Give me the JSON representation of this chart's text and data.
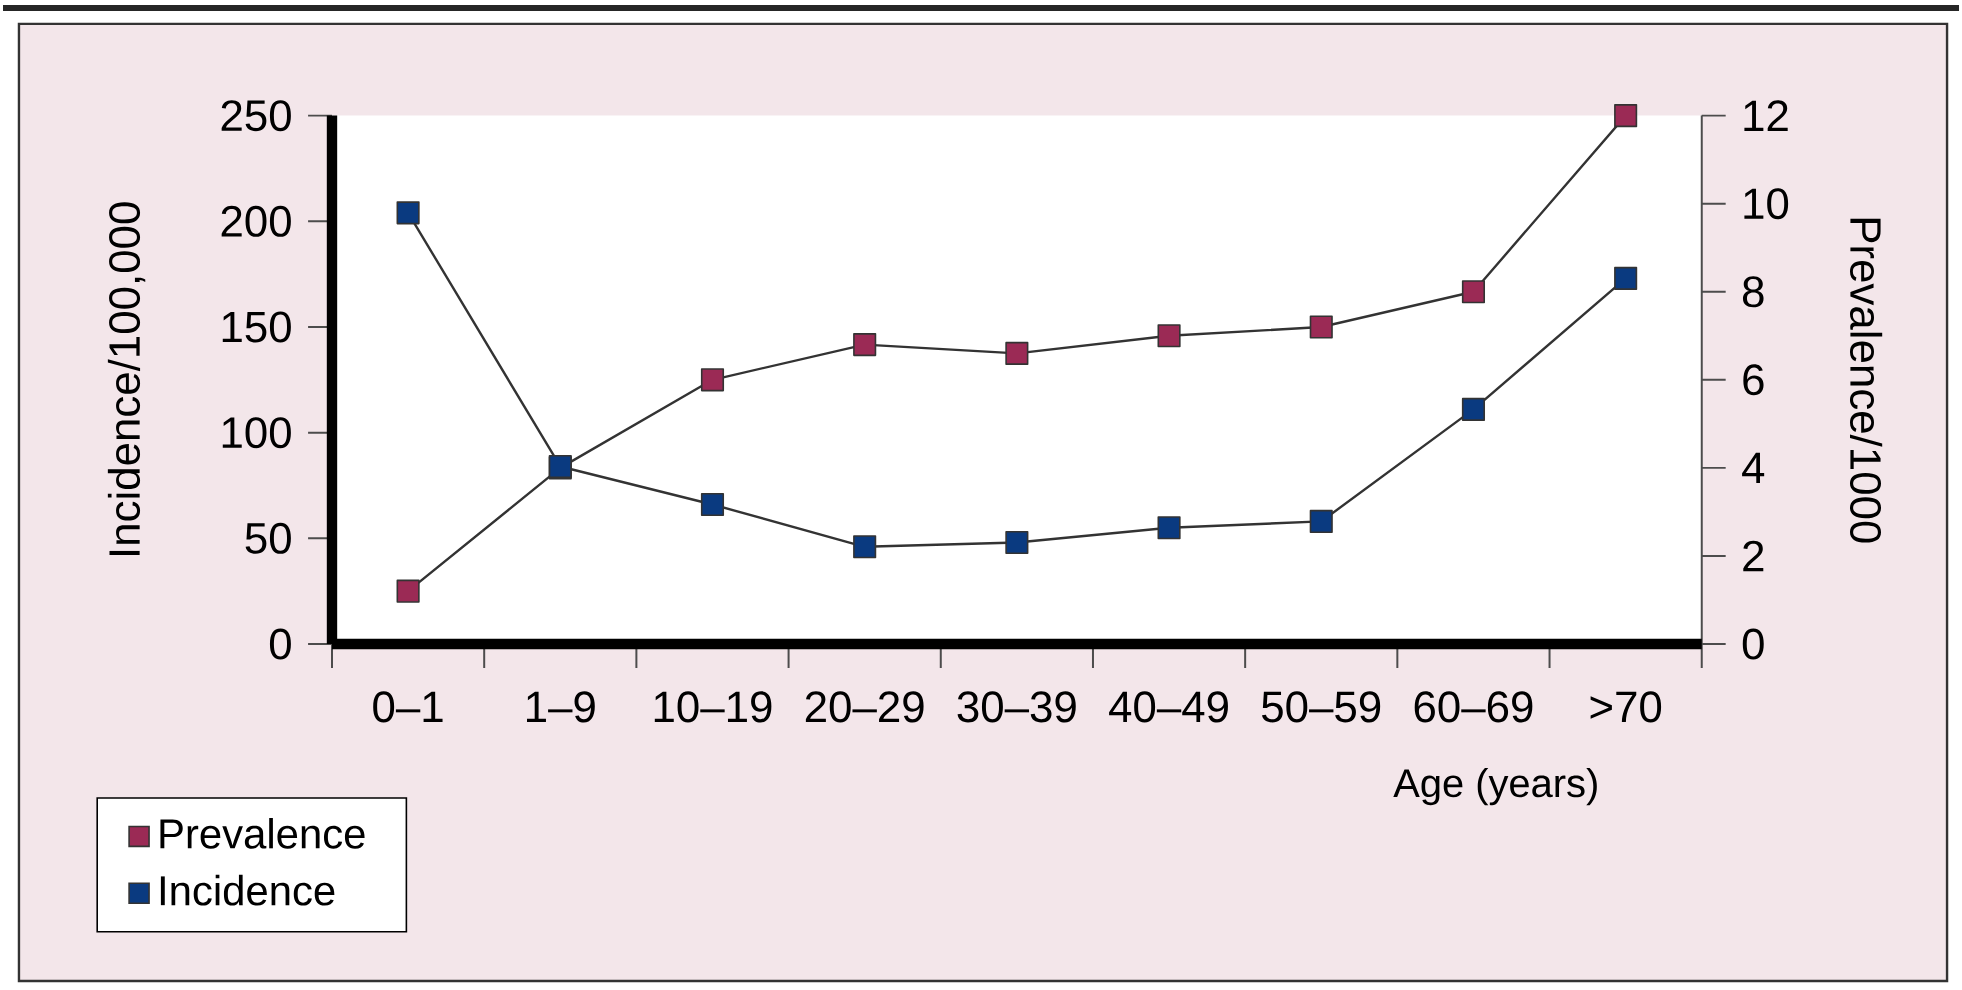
{
  "chart_data": {
    "type": "line",
    "xlabel": "Age (years)",
    "ylabel": "Incidence/100,000",
    "y2label": "Prevalence/1000",
    "categories": [
      "0–1",
      "1–9",
      "10–19",
      "20–29",
      "30–39",
      "40–49",
      "50–59",
      "60–69",
      ">70"
    ],
    "series": [
      {
        "name": "Prevalence",
        "color": "#9b2a55",
        "axis": "y2",
        "values": [
          1.2,
          4.0,
          6.0,
          6.8,
          6.6,
          7.0,
          7.2,
          8.0,
          12.0
        ]
      },
      {
        "name": "Incidence",
        "color": "#0a3a80",
        "values": [
          204,
          84,
          66,
          46,
          48,
          55,
          58,
          111,
          173
        ]
      }
    ],
    "ylim": [
      0,
      250
    ],
    "yticks": [
      0,
      50,
      100,
      150,
      200,
      250
    ],
    "y2lim": [
      0,
      12
    ],
    "y2ticks": [
      0,
      2,
      4,
      6,
      8,
      10,
      12
    ],
    "legend": "bottom left",
    "marker": "square",
    "line_style": "solid"
  }
}
